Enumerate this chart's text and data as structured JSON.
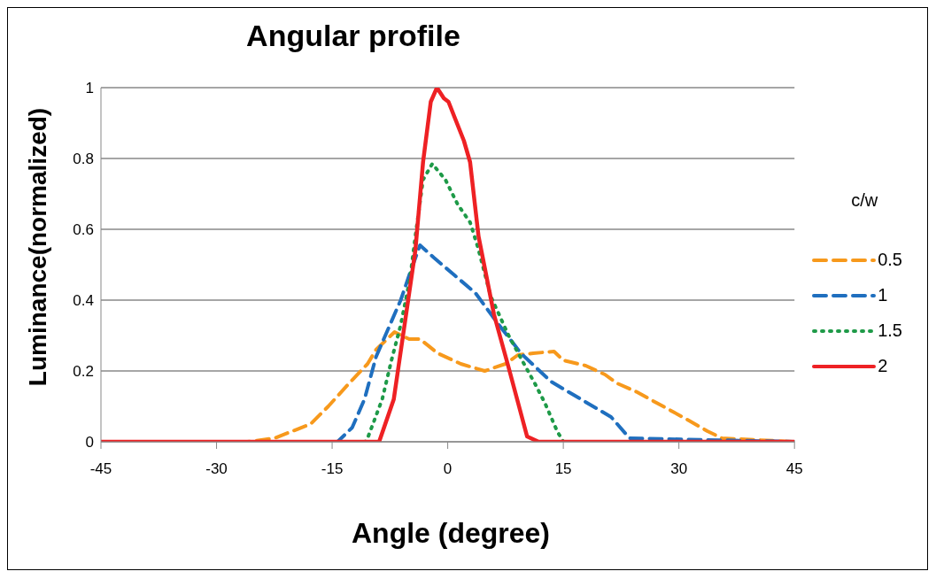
{
  "chart_data": {
    "type": "line",
    "title": "Angular profile",
    "xlabel": "Angle (degree)",
    "ylabel": "Luminance(normalized)",
    "legend_title": "c/w",
    "xlim": [
      -45,
      45
    ],
    "xticks": [
      -45,
      -30,
      -15,
      0,
      15,
      30,
      45
    ],
    "ylim": [
      0,
      1
    ],
    "yticks": [
      0,
      0.2,
      0.4,
      0.6,
      0.8,
      1
    ],
    "grid": "y",
    "legend": "right",
    "marker": "none",
    "series": [
      {
        "name": "0.5",
        "color": "#f7991c",
        "line_style": "dashed",
        "x": [
          -45,
          -26,
          -22.5,
          -17.8,
          -15.5,
          -12.8,
          -10.4,
          -9.3,
          -6.9,
          -5,
          -3.6,
          -1.3,
          1.7,
          4.8,
          7.5,
          9.1,
          11.1,
          13.8,
          15,
          17.9,
          20.4,
          22,
          24.6,
          27.1,
          28.8,
          31.3,
          33.7,
          35.6,
          45
        ],
        "values": [
          0,
          0,
          0.01,
          0.05,
          0.1,
          0.165,
          0.22,
          0.26,
          0.31,
          0.29,
          0.29,
          0.25,
          0.22,
          0.2,
          0.22,
          0.245,
          0.25,
          0.255,
          0.23,
          0.215,
          0.19,
          0.165,
          0.14,
          0.11,
          0.09,
          0.06,
          0.03,
          0.01,
          0
        ]
      },
      {
        "name": "1",
        "color": "#1f6fbf",
        "line_style": "dashed",
        "x": [
          -45,
          -14.3,
          -12.4,
          -10.8,
          -9.3,
          -7.7,
          -6.1,
          -5,
          -3.6,
          -1.8,
          0.9,
          3.6,
          6.3,
          9.5,
          13.4,
          17.3,
          21.2,
          23.6,
          45
        ],
        "values": [
          0,
          0,
          0.04,
          0.12,
          0.24,
          0.32,
          0.4,
          0.47,
          0.555,
          0.52,
          0.47,
          0.42,
          0.34,
          0.25,
          0.17,
          0.12,
          0.07,
          0.01,
          0
        ]
      },
      {
        "name": "1.5",
        "color": "#1e9a48",
        "line_style": "dotted",
        "x": [
          -45,
          -10.7,
          -10.4,
          -8.5,
          -7.3,
          -6.1,
          -4.9,
          -4.2,
          -3.2,
          -2,
          -0.3,
          1.3,
          2.9,
          3.9,
          5.6,
          7.9,
          9.9,
          11.3,
          12.6,
          14.2,
          15,
          45
        ],
        "values": [
          0,
          0,
          0.01,
          0.12,
          0.23,
          0.33,
          0.46,
          0.58,
          0.74,
          0.785,
          0.74,
          0.67,
          0.62,
          0.55,
          0.41,
          0.3,
          0.22,
          0.165,
          0.11,
          0.03,
          0,
          0
        ]
      },
      {
        "name": "2",
        "color": "#ee2124",
        "line_style": "solid",
        "x": [
          -45,
          -8.9,
          -7,
          -4.2,
          -3.2,
          -2.2,
          -1.4,
          -0.5,
          0.1,
          2.1,
          2.9,
          4,
          6,
          7.9,
          10.3,
          11.8,
          45
        ],
        "values": [
          0,
          0,
          0.12,
          0.54,
          0.79,
          0.96,
          1,
          0.97,
          0.96,
          0.85,
          0.79,
          0.58,
          0.36,
          0.21,
          0.015,
          0,
          0
        ]
      }
    ]
  }
}
